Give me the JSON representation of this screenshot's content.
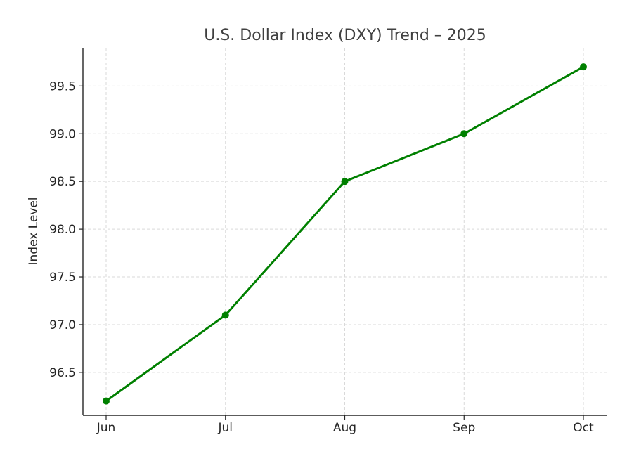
{
  "chart_data": {
    "type": "line",
    "title": "U.S. Dollar Index (DXY) Trend – 2025",
    "xlabel": "",
    "ylabel": "Index Level",
    "categories": [
      "Jun",
      "Jul",
      "Aug",
      "Sep",
      "Oct"
    ],
    "series": [
      {
        "values": [
          96.2,
          97.1,
          98.5,
          99.0,
          99.7
        ],
        "color": "#008000",
        "marker": "circle"
      }
    ],
    "ylim": [
      96.05,
      99.9
    ],
    "yticks": [
      "96.5",
      "97.0",
      "97.5",
      "98.0",
      "98.5",
      "99.0",
      "99.5"
    ],
    "grid": true,
    "legend": "none"
  }
}
